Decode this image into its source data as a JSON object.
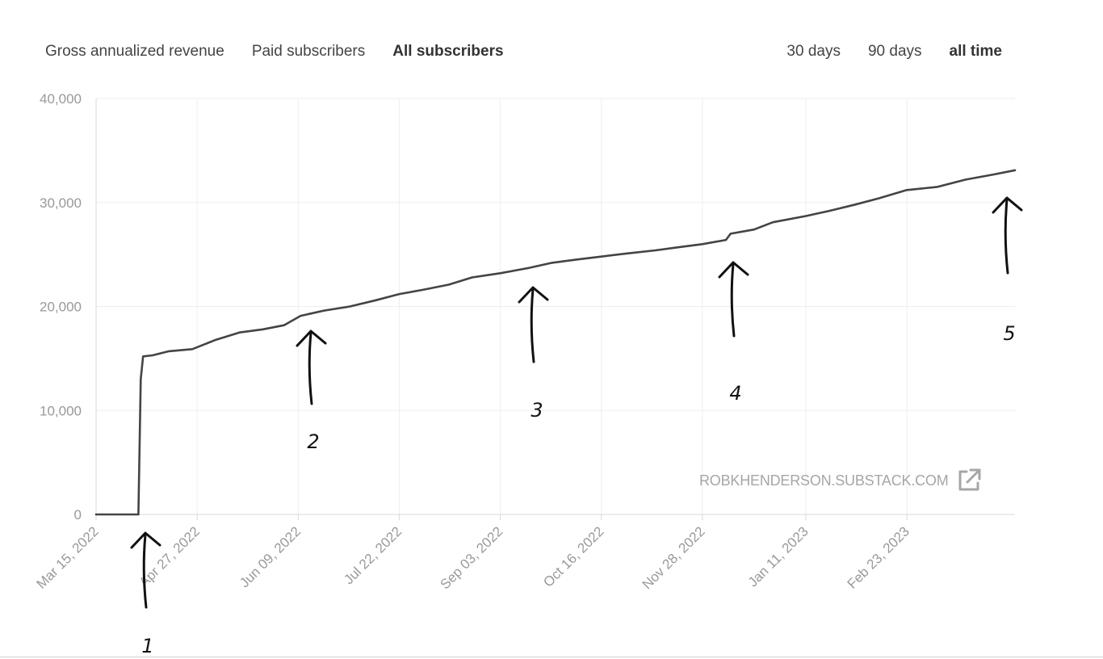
{
  "metric_tabs": [
    {
      "label": "Gross annualized revenue",
      "active": false
    },
    {
      "label": "Paid subscribers",
      "active": false
    },
    {
      "label": "All subscribers",
      "active": true
    }
  ],
  "range_tabs": [
    {
      "label": "30 days",
      "active": false
    },
    {
      "label": "90 days",
      "active": false
    },
    {
      "label": "all time",
      "active": true
    }
  ],
  "watermark": "ROBKHENDERSON.SUBSTACK.COM",
  "external_link_icon": "external-link-icon",
  "annotations": [
    "1",
    "2",
    "3",
    "4",
    "5"
  ],
  "colors": {
    "line": "#444444",
    "grid": "#eeeeee",
    "axis": "#d8d8d8",
    "tick_text": "#999999",
    "annotation": "#111111"
  },
  "chart_data": {
    "type": "line",
    "title": "",
    "xlabel": "",
    "ylabel": "",
    "ylim": [
      0,
      40000
    ],
    "yticks": [
      0,
      10000,
      20000,
      30000,
      40000
    ],
    "ytick_labels": [
      "0",
      "10,000",
      "20,000",
      "30,000",
      "40,000"
    ],
    "xticks": [
      "2022-03-15",
      "2022-04-27",
      "2022-06-09",
      "2022-07-22",
      "2022-09-03",
      "2022-10-16",
      "2022-11-28",
      "2023-01-11",
      "2023-02-23"
    ],
    "xtick_labels": [
      "Mar 15, 2022",
      "Apr 27, 2022",
      "Jun 09, 2022",
      "Jul 22, 2022",
      "Sep 03, 2022",
      "Oct 16, 2022",
      "Nov 28, 2022",
      "Jan 11, 2023",
      "Feb 23, 2023"
    ],
    "xlim": [
      "2022-03-15",
      "2023-04-10"
    ],
    "grid": true,
    "series": [
      {
        "x": [
          "2022-03-15",
          "2022-04-02",
          "2022-04-03",
          "2022-04-04",
          "2022-04-08",
          "2022-04-15",
          "2022-04-25",
          "2022-05-05",
          "2022-05-15",
          "2022-05-25",
          "2022-06-03",
          "2022-06-10",
          "2022-06-20",
          "2022-07-01",
          "2022-07-12",
          "2022-07-22",
          "2022-08-01",
          "2022-08-12",
          "2022-08-22",
          "2022-09-03",
          "2022-09-15",
          "2022-09-25",
          "2022-10-05",
          "2022-10-16",
          "2022-10-27",
          "2022-11-08",
          "2022-11-18",
          "2022-11-28",
          "2022-12-08",
          "2022-12-10",
          "2022-12-20",
          "2022-12-28",
          "2023-01-11",
          "2023-01-21",
          "2023-02-01",
          "2023-02-11",
          "2023-02-23",
          "2023-03-08",
          "2023-03-20",
          "2023-04-01",
          "2023-04-10"
        ],
        "values": [
          0,
          0,
          13000,
          15200,
          15300,
          15700,
          15900,
          16800,
          17500,
          17800,
          18200,
          19100,
          19600,
          20000,
          20600,
          21200,
          21600,
          22100,
          22800,
          23200,
          23700,
          24200,
          24500,
          24800,
          25100,
          25400,
          25700,
          26000,
          26400,
          27000,
          27400,
          28100,
          28700,
          29200,
          29800,
          30400,
          31200,
          31500,
          32200,
          32700,
          33100
        ]
      }
    ]
  }
}
